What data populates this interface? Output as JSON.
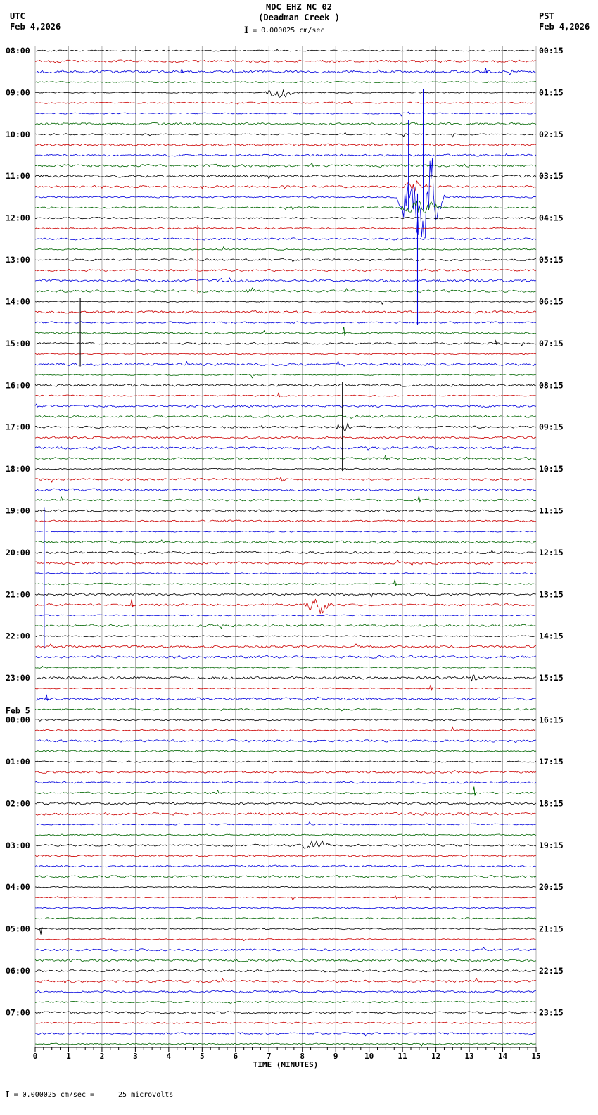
{
  "header": {
    "title": "MDC EHZ NC 02",
    "subtitle": "(Deadman Creek )",
    "scale_symbol": "I",
    "scale_label": "= 0.000025 cm/sec",
    "left_tz": "UTC",
    "left_date": "Feb 4,2026",
    "right_tz": "PST",
    "right_date": "Feb 4,2026"
  },
  "axis": {
    "xlabel": "TIME (MINUTES)",
    "ticks": [
      "0",
      "1",
      "2",
      "3",
      "4",
      "5",
      "6",
      "7",
      "8",
      "9",
      "10",
      "11",
      "12",
      "13",
      "14",
      "15"
    ]
  },
  "footer": {
    "symbol": "I",
    "text": "= 0.000025 cm/sec =",
    "text2": "25 microvolts"
  },
  "left_labels": [
    {
      "row": 0,
      "text": "08:00"
    },
    {
      "row": 4,
      "text": "09:00"
    },
    {
      "row": 8,
      "text": "10:00"
    },
    {
      "row": 12,
      "text": "11:00"
    },
    {
      "row": 16,
      "text": "12:00"
    },
    {
      "row": 20,
      "text": "13:00"
    },
    {
      "row": 24,
      "text": "14:00"
    },
    {
      "row": 28,
      "text": "15:00"
    },
    {
      "row": 32,
      "text": "16:00"
    },
    {
      "row": 36,
      "text": "17:00"
    },
    {
      "row": 40,
      "text": "18:00"
    },
    {
      "row": 44,
      "text": "19:00"
    },
    {
      "row": 48,
      "text": "20:00"
    },
    {
      "row": 52,
      "text": "21:00"
    },
    {
      "row": 56,
      "text": "22:00"
    },
    {
      "row": 60,
      "text": "23:00"
    },
    {
      "row": 64,
      "text": "00:00",
      "prefix": "Feb 5"
    },
    {
      "row": 68,
      "text": "01:00"
    },
    {
      "row": 72,
      "text": "02:00"
    },
    {
      "row": 76,
      "text": "03:00"
    },
    {
      "row": 80,
      "text": "04:00"
    },
    {
      "row": 84,
      "text": "05:00"
    },
    {
      "row": 88,
      "text": "06:00"
    },
    {
      "row": 92,
      "text": "07:00"
    }
  ],
  "right_labels": [
    {
      "row": 0,
      "text": "00:15"
    },
    {
      "row": 4,
      "text": "01:15"
    },
    {
      "row": 8,
      "text": "02:15"
    },
    {
      "row": 12,
      "text": "03:15"
    },
    {
      "row": 16,
      "text": "04:15"
    },
    {
      "row": 20,
      "text": "05:15"
    },
    {
      "row": 24,
      "text": "06:15"
    },
    {
      "row": 28,
      "text": "07:15"
    },
    {
      "row": 32,
      "text": "08:15"
    },
    {
      "row": 36,
      "text": "09:15"
    },
    {
      "row": 40,
      "text": "10:15"
    },
    {
      "row": 44,
      "text": "11:15"
    },
    {
      "row": 48,
      "text": "12:15"
    },
    {
      "row": 52,
      "text": "13:15"
    },
    {
      "row": 56,
      "text": "14:15"
    },
    {
      "row": 60,
      "text": "15:15"
    },
    {
      "row": 64,
      "text": "16:15"
    },
    {
      "row": 68,
      "text": "17:15"
    },
    {
      "row": 72,
      "text": "18:15"
    },
    {
      "row": 76,
      "text": "19:15"
    },
    {
      "row": 80,
      "text": "20:15"
    },
    {
      "row": 84,
      "text": "21:15"
    },
    {
      "row": 88,
      "text": "22:15"
    },
    {
      "row": 92,
      "text": "23:15"
    }
  ],
  "chart_data": {
    "type": "line",
    "subtype": "helicorder-seismogram",
    "title": "MDC EHZ NC 02",
    "station": "Deadman Creek",
    "xlabel": "TIME (MINUTES)",
    "x_range": [
      0,
      15
    ],
    "rows": 96,
    "minutes_per_row": 15,
    "lines_per_hour": 4,
    "utc_first_row": "08:00 Feb 4,2026",
    "row_color_cycle": [
      "#000000",
      "#cc0000",
      "#0000dd",
      "#006600"
    ],
    "grid_color": "#9e9e9e",
    "events": [
      {
        "type": "burst",
        "row": 4,
        "x0": 6.85,
        "x1": 7.75,
        "amp": 7
      },
      {
        "type": "vline",
        "x": 11.62,
        "row0": 4,
        "row1": 15,
        "color": "#0000dd"
      },
      {
        "type": "vline",
        "x": 11.18,
        "row0": 7,
        "row1": 15,
        "color": "#0000dd"
      },
      {
        "type": "vline",
        "x": 11.45,
        "row0": 14,
        "row1": 26,
        "color": "#0000dd"
      },
      {
        "type": "burst",
        "row": 13,
        "x0": 11.05,
        "x1": 11.8,
        "amp": 10
      },
      {
        "type": "burst",
        "row": 14,
        "x0": 10.8,
        "x1": 12.3,
        "amp": 42
      },
      {
        "type": "burst",
        "row": 15,
        "x0": 10.9,
        "x1": 12.2,
        "amp": 12
      },
      {
        "type": "vline",
        "x": 4.87,
        "row0": 17,
        "row1": 23,
        "color": "#cc0000"
      },
      {
        "type": "burst",
        "row": 23,
        "x0": 6.3,
        "x1": 6.7,
        "amp": 4
      },
      {
        "type": "vline",
        "x": 1.35,
        "row0": 24,
        "row1": 30,
        "color": "#000000"
      },
      {
        "type": "spike",
        "row": 28,
        "x": 13.8,
        "amp": 4
      },
      {
        "type": "vline",
        "x": 9.2,
        "row0": 32,
        "row1": 40,
        "color": "#000000"
      },
      {
        "type": "burst",
        "row": 36,
        "x0": 9.0,
        "x1": 9.45,
        "amp": 8
      },
      {
        "type": "spike",
        "row": 27,
        "x": 9.25,
        "amp": 9
      },
      {
        "type": "spike",
        "row": 33,
        "x": 7.3,
        "amp": 4
      },
      {
        "type": "spike",
        "row": 39,
        "x": 10.5,
        "amp": 5
      },
      {
        "type": "burst",
        "row": 41,
        "x0": 7.15,
        "x1": 7.5,
        "amp": 4
      },
      {
        "type": "spike",
        "row": 43,
        "x": 11.5,
        "amp": 6
      },
      {
        "type": "vline",
        "x": 0.27,
        "row0": 44,
        "row1": 57,
        "color": "#0000dd"
      },
      {
        "type": "spike",
        "row": 51,
        "x": 10.78,
        "amp": 6
      },
      {
        "type": "spike",
        "row": 53,
        "x": 2.9,
        "amp": 8
      },
      {
        "type": "burst",
        "row": 53,
        "x0": 8.05,
        "x1": 8.95,
        "amp": 10
      },
      {
        "type": "burst",
        "row": 60,
        "x0": 12.9,
        "x1": 13.35,
        "amp": 4
      },
      {
        "type": "spike",
        "row": 61,
        "x": 11.85,
        "amp": 5
      },
      {
        "type": "spike",
        "row": 62,
        "x": 0.35,
        "amp": 6
      },
      {
        "type": "spike",
        "row": 71,
        "x": 13.15,
        "amp": 9
      },
      {
        "type": "burst",
        "row": 76,
        "x0": 7.85,
        "x1": 8.9,
        "amp": 5
      },
      {
        "type": "spike",
        "row": 84,
        "x": 0.18,
        "amp": 8,
        "down": true
      },
      {
        "type": "spike",
        "row": 2,
        "x": 13.5,
        "amp": 5
      },
      {
        "type": "spike",
        "row": 2,
        "x": 4.4,
        "amp": 4
      }
    ]
  }
}
